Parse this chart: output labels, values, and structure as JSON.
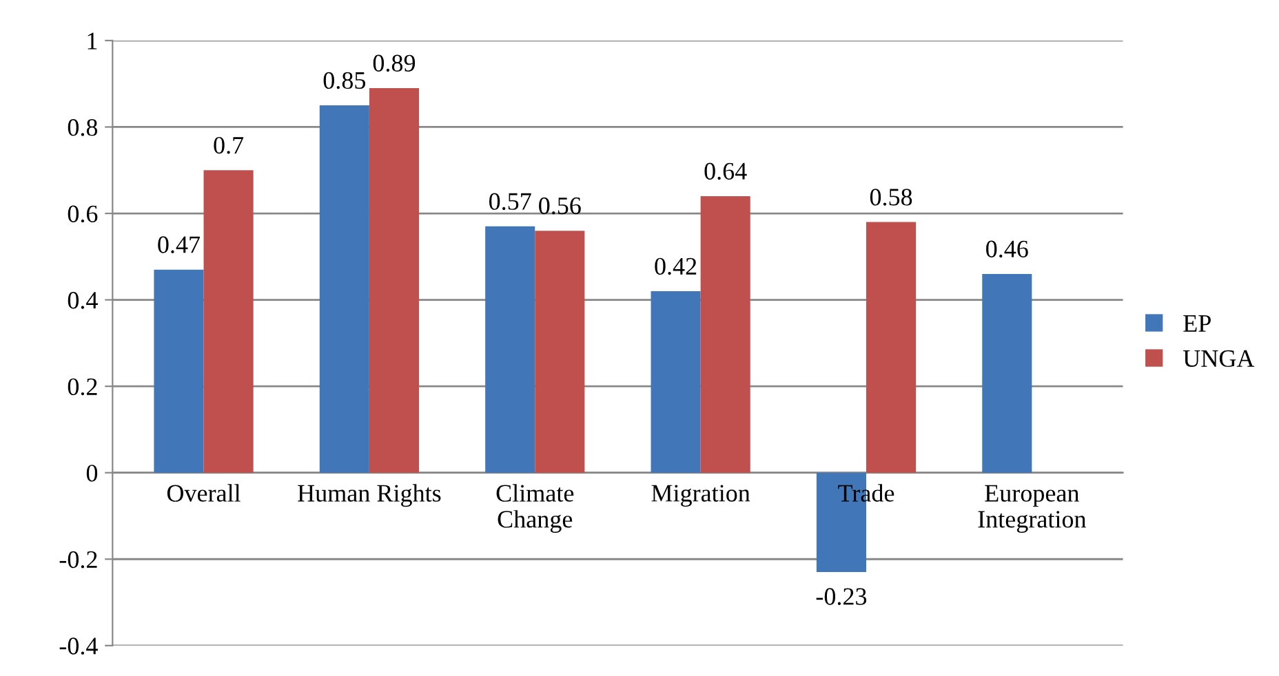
{
  "chart_data": {
    "type": "bar",
    "categories": [
      "Overall",
      "Human Rights",
      "Climate\nChange",
      "Migration",
      "Trade",
      "European\nIntegration"
    ],
    "series": [
      {
        "name": "EP",
        "color": "#4176b8",
        "values": [
          0.47,
          0.85,
          0.57,
          0.42,
          -0.23,
          0.46
        ]
      },
      {
        "name": "UNGA",
        "color": "#c0504d",
        "values": [
          0.7,
          0.89,
          0.56,
          0.64,
          0.58,
          null
        ]
      }
    ],
    "ylim": [
      -0.4,
      1
    ],
    "yticks": [
      -0.4,
      -0.2,
      0,
      0.2,
      0.4,
      0.6,
      0.8,
      1
    ],
    "grid": "y",
    "legend": "right",
    "data_labels": true
  }
}
